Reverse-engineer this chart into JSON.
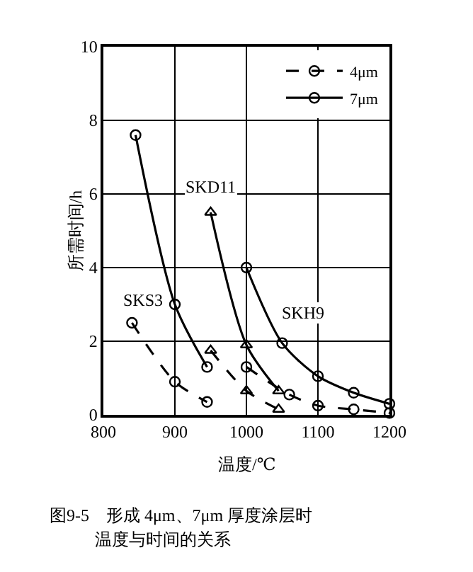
{
  "chart_data": {
    "type": "line",
    "xlabel": "温度/℃",
    "ylabel": "所需时间/h",
    "xlim": [
      800,
      1200
    ],
    "xticks": [
      800,
      900,
      1000,
      1100,
      1200
    ],
    "ylim": [
      0,
      10
    ],
    "yticks": [
      0,
      2,
      4,
      6,
      8,
      10
    ],
    "grid": true,
    "legend": "top right",
    "series": [
      {
        "name": "4μm",
        "color": "#000000",
        "line_style": "dashed",
        "marker": "circle",
        "x": [
          840,
          900,
          945
        ],
        "values": [
          2.5,
          0.9,
          0.35
        ]
      },
      {
        "name": "7μm",
        "color": "#000000",
        "line_style": "solid",
        "marker": "circle",
        "x": [
          845,
          900,
          945
        ],
        "values": [
          7.6,
          3.0,
          1.3
        ]
      },
      {
        "color": "#000000",
        "line_style": "dashed",
        "marker": "triangle",
        "x": [
          950,
          1000,
          1045
        ],
        "values": [
          1.75,
          0.65,
          0.15
        ]
      },
      {
        "color": "#000000",
        "line_style": "solid",
        "marker": "triangle",
        "x": [
          950,
          1000,
          1045
        ],
        "values": [
          5.5,
          1.9,
          0.65
        ]
      },
      {
        "color": "#000000",
        "line_style": "dashed",
        "marker": "circle",
        "x": [
          1000,
          1060,
          1100,
          1150,
          1200
        ],
        "values": [
          1.3,
          0.55,
          0.25,
          0.15,
          0.05
        ]
      },
      {
        "color": "#000000",
        "line_style": "solid",
        "marker": "circle",
        "x": [
          1000,
          1050,
          1100,
          1150,
          1200
        ],
        "values": [
          4.0,
          1.95,
          1.05,
          0.6,
          0.3
        ]
      }
    ],
    "annotations": [
      {
        "text": "SKS3",
        "x": 840,
        "y": 2.5
      },
      {
        "text": "SKD11",
        "x": 950,
        "y": 5.5
      },
      {
        "text": "SKH9",
        "x": 1000,
        "y": 4.0
      },
      "图9-5　形成 4μm、7μm 厚度涂层时",
      "温度与时间的关系"
    ]
  }
}
